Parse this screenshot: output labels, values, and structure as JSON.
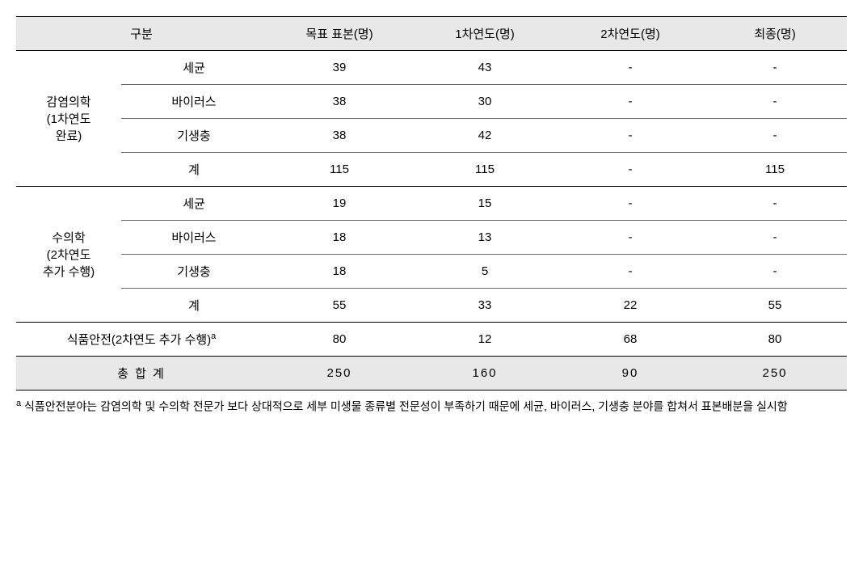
{
  "columns": {
    "c0": "구분",
    "c1": "목표 표본(명)",
    "c2": "1차연도(명)",
    "c3": "2차연도(명)",
    "c4": "최종(명)"
  },
  "group1": {
    "label_l1": "감염의학",
    "label_l2": "(1차연도",
    "label_l3": "완료)",
    "r1": {
      "sub": "세균",
      "v1": "39",
      "v2": "43",
      "v3": "-",
      "v4": "-"
    },
    "r2": {
      "sub": "바이러스",
      "v1": "38",
      "v2": "30",
      "v3": "-",
      "v4": "-"
    },
    "r3": {
      "sub": "기생충",
      "v1": "38",
      "v2": "42",
      "v3": "-",
      "v4": "-"
    },
    "r4": {
      "sub": "계",
      "v1": "115",
      "v2": "115",
      "v3": "-",
      "v4": "115"
    }
  },
  "group2": {
    "label_l1": "수의학",
    "label_l2": "(2차연도",
    "label_l3": "추가 수행)",
    "r1": {
      "sub": "세균",
      "v1": "19",
      "v2": "15",
      "v3": "-",
      "v4": "-"
    },
    "r2": {
      "sub": "바이러스",
      "v1": "18",
      "v2": "13",
      "v3": "-",
      "v4": "-"
    },
    "r3": {
      "sub": "기생충",
      "v1": "18",
      "v2": "5",
      "v3": "-",
      "v4": "-"
    },
    "r4": {
      "sub": "계",
      "v1": "55",
      "v2": "33",
      "v3": "22",
      "v4": "55"
    }
  },
  "group3": {
    "label": "식품안전(2차연도 추가 수행)",
    "sup": "a",
    "v1": "80",
    "v2": "12",
    "v3": "68",
    "v4": "80"
  },
  "total": {
    "label": "총 합 계",
    "v1": "250",
    "v2": "160",
    "v3": "90",
    "v4": "250"
  },
  "footnote": {
    "sup": "a",
    "text": " 식품안전분야는 감염의학 및 수의학 전문가 보다 상대적으로 세부 미생물 종류별 전문성이 부족하기 때문에 세균, 바이러스, 기생충 분야를 합쳐서 표본배분을 실시함"
  },
  "widths": {
    "c0a": "130",
    "c0b": "180",
    "c1": "180",
    "c2": "180",
    "c3": "180",
    "c4": "178"
  }
}
